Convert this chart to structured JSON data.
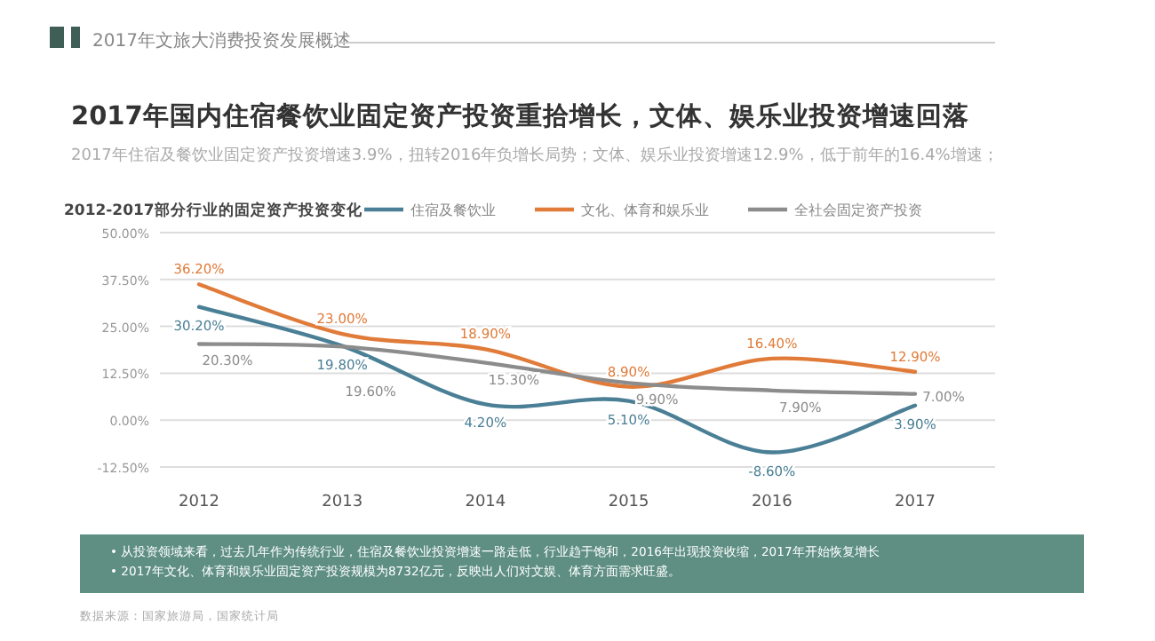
{
  "chart_data": {
    "type": "line",
    "title": "2017年国内住宿餐饮业固定资产投资重拾增长，文体、娱乐业投资增速回落",
    "subtitle": "2017年住宿及餐饮业固定资产投资增速3.9%，扭转2016年负增长局势；文体、娱乐业投资增速12.9%，低于前年的16.4%增速；",
    "annotations": [
      "2017年文旅大消费投资发展概述",
      "2012-2017部分行业的固定资产投资变化",
      "• 从投资领域来看，过去几年作为传统行业，住宿及餐饮业投资增速一路走低，行业趋于饱和，2016年出现投资收缩，2017年开始恢复增长",
      "• 2017年文化、体育和娱乐业固定资产投资规模为8732亿元，反映出人们对文娱、体育方面需求旺盛。",
      "数据来源：国家旅游局，国家统计局"
    ],
    "categories": [
      "2012",
      "2013",
      "2014",
      "2015",
      "2016",
      "2017"
    ],
    "series": [
      {
        "name": "住宿及餐饮业",
        "color": "#4a7f96",
        "values": [
          30.2,
          19.8,
          4.2,
          5.1,
          -8.6,
          3.9
        ],
        "value_labels": [
          "30.20%",
          "19.80%",
          "4.20%",
          "5.10%",
          "-8.60%",
          "3.90%"
        ]
      },
      {
        "name": "文化、体育和娱乐业",
        "color": "#e07b39",
        "values": [
          36.2,
          23.0,
          18.9,
          8.9,
          16.4,
          12.9
        ],
        "value_labels": [
          "36.20%",
          "23.00%",
          "18.90%",
          "8.90%",
          "16.40%",
          "12.90%"
        ]
      },
      {
        "name": "全社会固定资产投资",
        "color": "#8c8c8c",
        "values": [
          20.3,
          19.6,
          15.3,
          9.9,
          7.9,
          7.0
        ],
        "value_labels": [
          "20.30%",
          "19.60%",
          "15.30%",
          "9.90%",
          "7.90%",
          "7.00%"
        ]
      }
    ],
    "ylim": [
      -12.5,
      50
    ],
    "yticks": [
      {
        "value": -12.5,
        "label": "-12.50%"
      },
      {
        "value": 0,
        "label": "0.00%"
      },
      {
        "value": 12.5,
        "label": "12.50%"
      },
      {
        "value": 25,
        "label": "25.00%"
      },
      {
        "value": 37.5,
        "label": "37.50%"
      },
      {
        "value": 50,
        "label": "50.00%"
      }
    ],
    "grid": "y",
    "legend": "top",
    "marker": "none",
    "line_style": "solid"
  }
}
